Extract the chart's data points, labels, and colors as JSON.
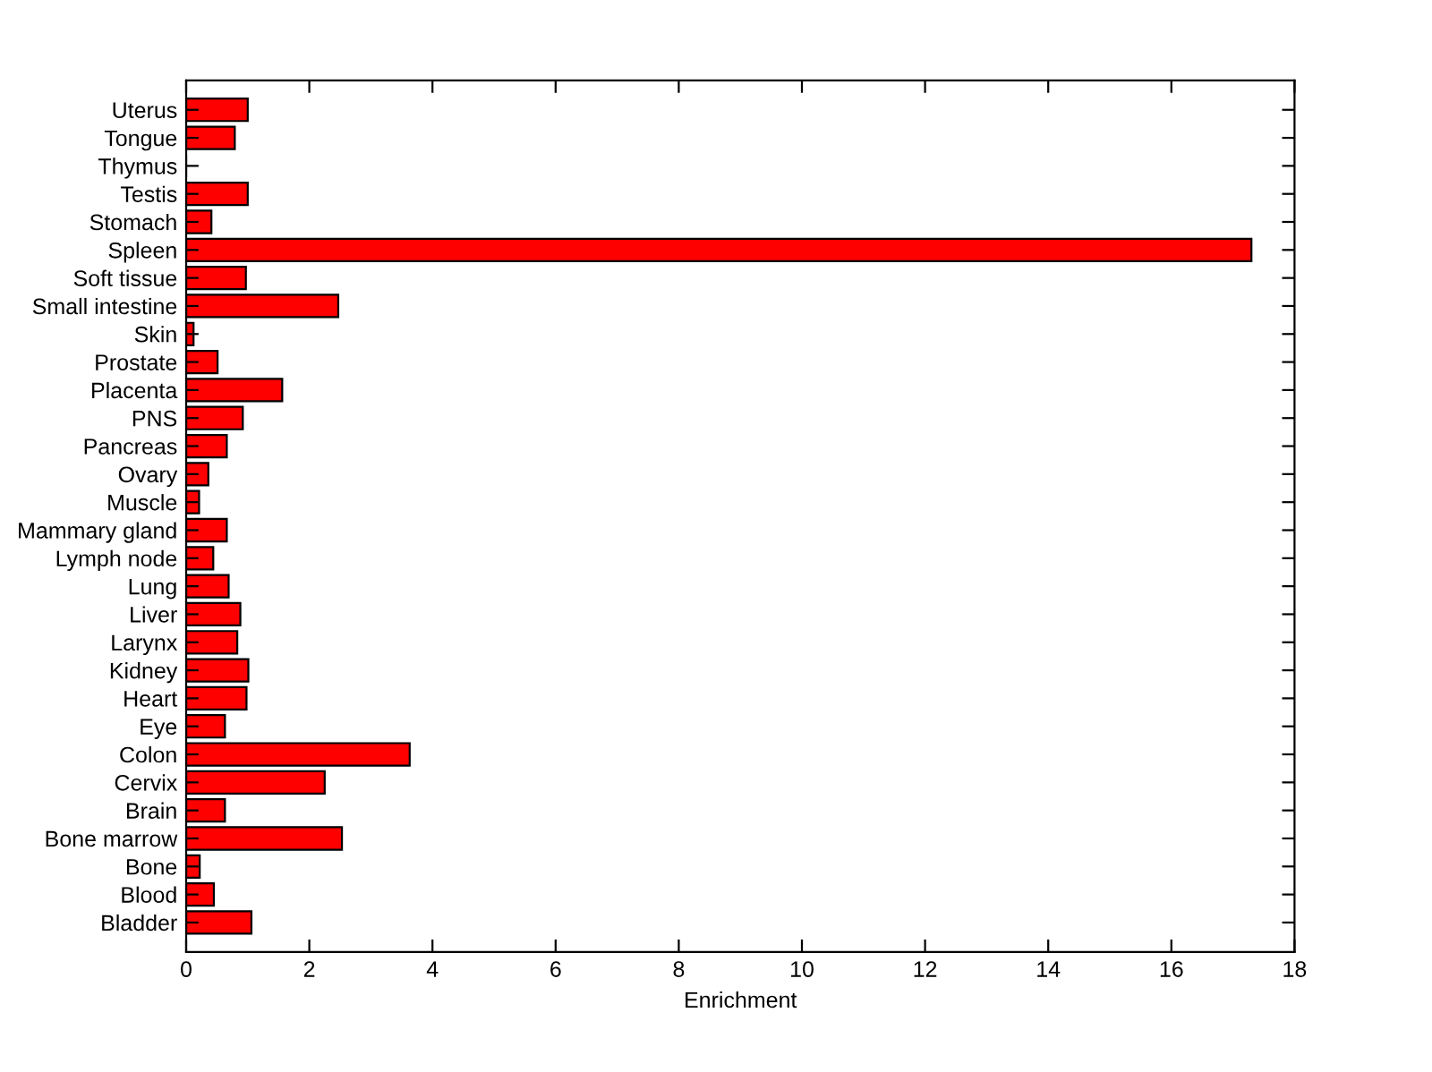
{
  "chart_data": {
    "type": "bar",
    "orientation": "horizontal",
    "xlabel": "Enrichment",
    "categories": [
      "Uterus",
      "Tongue",
      "Thymus",
      "Testis",
      "Stomach",
      "Spleen",
      "Soft tissue",
      "Small intestine",
      "Skin",
      "Prostate",
      "Placenta",
      "PNS",
      "Pancreas",
      "Ovary",
      "Muscle",
      "Mammary gland",
      "Lymph node",
      "Lung",
      "Liver",
      "Larynx",
      "Kidney",
      "Heart",
      "Eye",
      "Colon",
      "Cervix",
      "Brain",
      "Bone marrow",
      "Bone",
      "Blood",
      "Bladder"
    ],
    "values": [
      1.0,
      0.79,
      0,
      1.0,
      0.41,
      17.3,
      0.97,
      2.47,
      0.12,
      0.51,
      1.56,
      0.92,
      0.66,
      0.36,
      0.21,
      0.66,
      0.44,
      0.69,
      0.88,
      0.83,
      1.01,
      0.98,
      0.63,
      3.63,
      2.25,
      0.63,
      2.53,
      0.22,
      0.45,
      1.06
    ],
    "color": "#ff0000",
    "xlim": [
      0,
      18
    ],
    "xticks": [
      0,
      2,
      4,
      6,
      8,
      10,
      12,
      14,
      16,
      18
    ],
    "grid": false,
    "legend": false
  }
}
